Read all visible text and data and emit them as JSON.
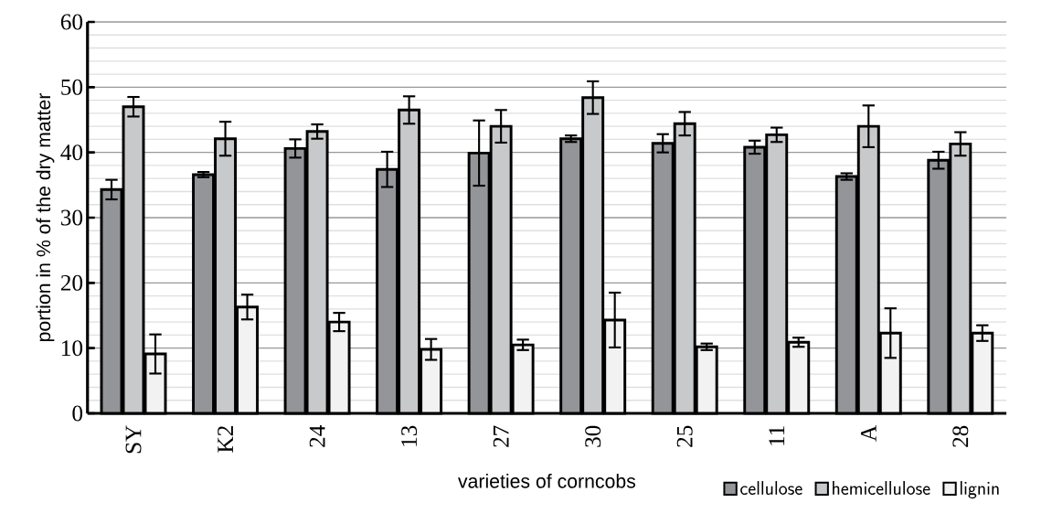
{
  "chart_data": {
    "type": "bar",
    "xlabel": "varieties of corncobs",
    "ylabel": "portion in % of the dry matter",
    "categories": [
      "SY",
      "K2",
      "24",
      "13",
      "27",
      "30",
      "25",
      "11",
      "A",
      "28"
    ],
    "series": [
      {
        "name": "cellulose",
        "color": "#939598",
        "values": [
          34.3,
          36.6,
          40.6,
          37.4,
          39.9,
          42.1,
          41.4,
          40.8,
          36.3,
          38.8
        ],
        "errors": [
          1.5,
          0.4,
          1.4,
          2.7,
          5.0,
          0.5,
          1.4,
          1.0,
          0.5,
          1.3
        ]
      },
      {
        "name": "hemicellulose",
        "color": "#c8c9cb",
        "values": [
          47.0,
          42.1,
          43.2,
          46.5,
          44.0,
          48.4,
          44.4,
          42.7,
          44.0,
          41.3
        ],
        "errors": [
          1.5,
          2.6,
          1.1,
          2.1,
          2.5,
          2.5,
          1.8,
          1.1,
          3.2,
          1.8
        ]
      },
      {
        "name": "lignin",
        "color": "#f2f2f2",
        "values": [
          9.1,
          16.3,
          14.0,
          9.8,
          10.5,
          14.3,
          10.2,
          10.9,
          12.3,
          12.3
        ],
        "errors": [
          3.0,
          1.9,
          1.4,
          1.6,
          0.8,
          4.2,
          0.5,
          0.7,
          3.8,
          1.2
        ]
      }
    ],
    "ylim": [
      0,
      60
    ],
    "yticks": [
      0,
      10,
      20,
      30,
      40,
      50,
      60
    ],
    "grid": "y",
    "legend": "bottom right"
  }
}
